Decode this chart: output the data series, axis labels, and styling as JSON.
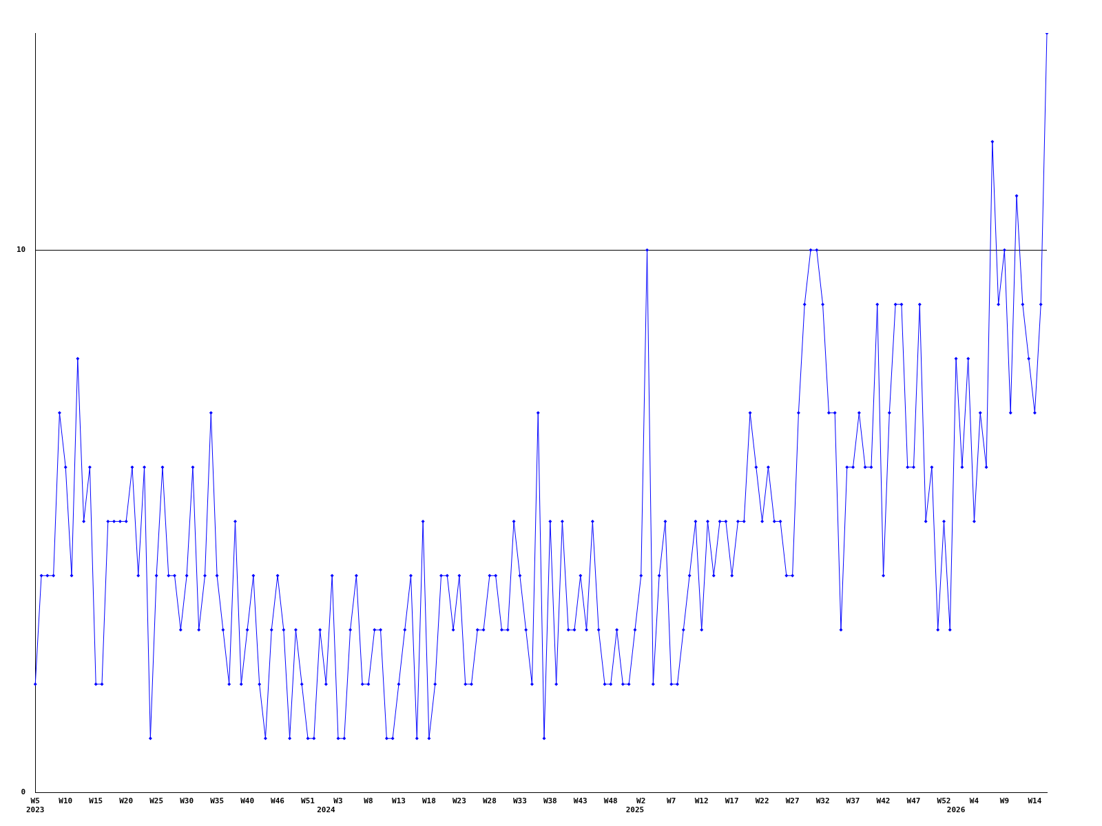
{
  "chart_data": {
    "type": "line",
    "categories": [
      "W5\n2023",
      null,
      null,
      null,
      null,
      "W10",
      null,
      null,
      null,
      null,
      "W15",
      null,
      null,
      null,
      null,
      "W20",
      null,
      null,
      null,
      null,
      "W25",
      null,
      null,
      null,
      null,
      "W30",
      null,
      null,
      null,
      null,
      "W35",
      null,
      null,
      null,
      null,
      "W40",
      null,
      null,
      null,
      null,
      "W46",
      null,
      null,
      null,
      null,
      "W51",
      null,
      null,
      "\n2024",
      null,
      "W3",
      null,
      null,
      null,
      null,
      "W8",
      null,
      null,
      null,
      null,
      "W13",
      null,
      null,
      null,
      null,
      "W18",
      null,
      null,
      null,
      null,
      "W23",
      null,
      null,
      null,
      null,
      "W28",
      null,
      null,
      null,
      null,
      "W33",
      null,
      null,
      null,
      null,
      "W38",
      null,
      null,
      null,
      null,
      "W43",
      null,
      null,
      null,
      null,
      "W48",
      null,
      null,
      null,
      "\n2025",
      "W2",
      null,
      null,
      null,
      null,
      "W7",
      null,
      null,
      null,
      null,
      "W12",
      null,
      null,
      null,
      null,
      "W17",
      null,
      null,
      null,
      null,
      "W22",
      null,
      null,
      null,
      null,
      "W27",
      null,
      null,
      null,
      null,
      "W32",
      null,
      null,
      null,
      null,
      "W37",
      null,
      null,
      null,
      null,
      "W42",
      null,
      null,
      null,
      null,
      "W47",
      null,
      null,
      null,
      null,
      "W52",
      null,
      "\n2026",
      null,
      null,
      "W4",
      null,
      null,
      null,
      null,
      "W9",
      null,
      null,
      null,
      null,
      "W14",
      null,
      null
    ],
    "series": [
      {
        "color": "#0000ff",
        "values": [
          2,
          4,
          4,
          4,
          7,
          6,
          4,
          8,
          5,
          6,
          2,
          2,
          5,
          5,
          5,
          5,
          6,
          4,
          6,
          1,
          4,
          6,
          4,
          4,
          3,
          4,
          6,
          3,
          4,
          7,
          4,
          3,
          2,
          5,
          2,
          3,
          4,
          2,
          1,
          3,
          4,
          3,
          1,
          3,
          2,
          1,
          1,
          3,
          2,
          4,
          1,
          1,
          3,
          4,
          2,
          2,
          3,
          3,
          1,
          1,
          2,
          3,
          4,
          1,
          5,
          1,
          2,
          4,
          4,
          3,
          4,
          2,
          2,
          3,
          3,
          4,
          4,
          3,
          3,
          5,
          4,
          3,
          2,
          7,
          1,
          5,
          2,
          5,
          3,
          3,
          4,
          3,
          5,
          3,
          2,
          2,
          3,
          2,
          2,
          3,
          4,
          10,
          2,
          4,
          5,
          2,
          2,
          3,
          4,
          5,
          3,
          5,
          4,
          5,
          5,
          4,
          5,
          5,
          7,
          6,
          5,
          6,
          5,
          5,
          4,
          4,
          7,
          9,
          10,
          10,
          9,
          7,
          7,
          3,
          6,
          6,
          7,
          6,
          6,
          9,
          4,
          7,
          9,
          9,
          6,
          6,
          9,
          5,
          6,
          3,
          5,
          3,
          8,
          6,
          8,
          5,
          7,
          6,
          12,
          9,
          10,
          7,
          11,
          9,
          8,
          7,
          9,
          14
        ]
      }
    ],
    "ylim": [
      0,
      14
    ],
    "yticks": [
      0,
      10
    ],
    "grid": "y",
    "legend": false,
    "marker": "diamond",
    "line_style": "solid"
  }
}
